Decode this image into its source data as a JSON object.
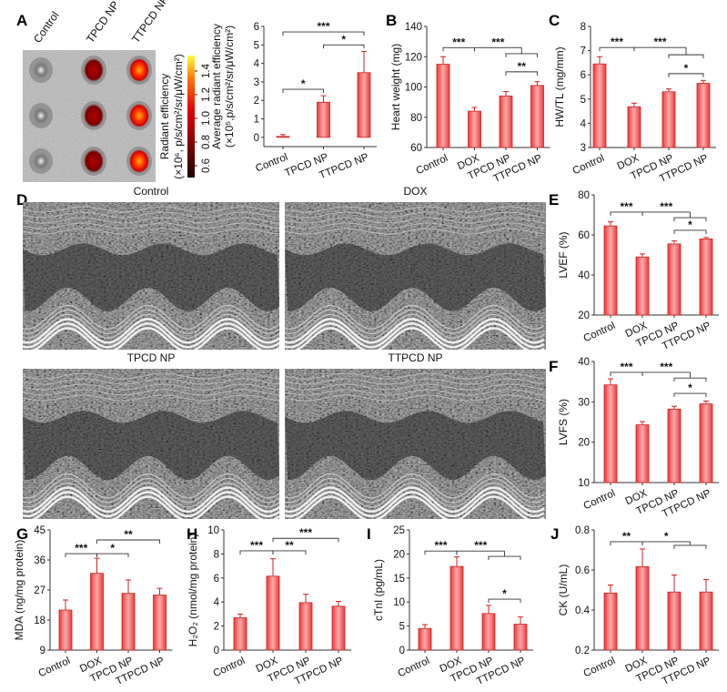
{
  "panel_letters": [
    "A",
    "B",
    "C",
    "D",
    "E",
    "F",
    "G",
    "H",
    "I",
    "J"
  ],
  "panel_a_image": {
    "column_labels": [
      "Control",
      "TPCD NP",
      "TTPCD NP"
    ],
    "colorbar": {
      "label_line1": "Radiant efficiency",
      "label_line2": "(×10⁶, p/s/cm²/sr/μW/cm²)",
      "ticks": [
        "0.6",
        "0.8",
        "1.0",
        "1.2",
        "1.4"
      ],
      "colors": [
        "#1a0000",
        "#8b0000",
        "#e00000",
        "#ff7000",
        "#ffff40"
      ]
    }
  },
  "panel_d": {
    "titles": [
      "Control",
      "DOX",
      "TPCD NP",
      "TTPCD NP"
    ]
  },
  "colors": {
    "bar": "#f05050",
    "bar_light": "#ffb0b0",
    "bar_edge": "#d02020"
  },
  "chart_data": [
    {
      "id": "A",
      "type": "bar",
      "ylabel": [
        "Average radiant efficiency",
        "(×10⁵,p/s/cm²/sr/μW/cm²)"
      ],
      "categories": [
        "Control",
        "TPCD NP",
        "TTPCD NP"
      ],
      "values": [
        0.05,
        1.9,
        3.5
      ],
      "errors": [
        0.1,
        0.35,
        1.15
      ],
      "ylim": [
        -0.5,
        6
      ],
      "yticks": [
        "0",
        "1",
        "2",
        "3",
        "4",
        "5",
        "6"
      ],
      "annotations": [
        {
          "from": 0,
          "to": 1,
          "y": 2.6,
          "label": "*"
        },
        {
          "from": 0,
          "to": 2,
          "y": 5.7,
          "label": "***"
        },
        {
          "from": 1,
          "to": 2,
          "y": 5.0,
          "label": "*"
        }
      ]
    },
    {
      "id": "B",
      "type": "bar",
      "ylabel": [
        "Heart weight (mg)"
      ],
      "categories": [
        "Control",
        "DOX",
        "TPCD NP",
        "TTPCD NP"
      ],
      "values": [
        115,
        84,
        94,
        101
      ],
      "errors": [
        5,
        2.5,
        3,
        2.5
      ],
      "ylim": [
        60,
        140
      ],
      "yticks": [
        "60",
        "80",
        "100",
        "120",
        "140"
      ],
      "annotations": [
        {
          "from": 0,
          "to": 1,
          "y": 126,
          "label": "***"
        },
        {
          "from": 1,
          "to": [
            2,
            3
          ],
          "y": 126,
          "y2": 122,
          "label": "***"
        },
        {
          "from": 2,
          "to": 3,
          "y": 110,
          "label": "**"
        }
      ]
    },
    {
      "id": "C",
      "type": "bar",
      "ylabel": [
        "HW/TL (mg/mm)"
      ],
      "categories": [
        "Control",
        "DOX",
        "TPCD NP",
        "TTPCD NP"
      ],
      "values": [
        6.45,
        4.68,
        5.3,
        5.65
      ],
      "errors": [
        0.3,
        0.15,
        0.12,
        0.12
      ],
      "ylim": [
        3,
        8
      ],
      "yticks": [
        "3",
        "4",
        "5",
        "6",
        "7",
        "8"
      ],
      "annotations": [
        {
          "from": 0,
          "to": 1,
          "y": 7.13,
          "label": "***"
        },
        {
          "from": 1,
          "to": [
            2,
            3
          ],
          "y": 7.13,
          "y2": 6.83,
          "label": "***"
        },
        {
          "from": 2,
          "to": 3,
          "y": 6.05,
          "label": "*"
        }
      ]
    },
    {
      "id": "E",
      "type": "bar",
      "ylabel": [
        "LVEF (%)"
      ],
      "categories": [
        "Control",
        "DOX",
        "TPCD NP",
        "TTPCD NP"
      ],
      "values": [
        64.5,
        49,
        55.5,
        58
      ],
      "errors": [
        2,
        1.5,
        1.5,
        0.7
      ],
      "ylim": [
        20,
        80
      ],
      "yticks": [
        "20",
        "40",
        "60",
        "80"
      ],
      "annotations": [
        {
          "from": 0,
          "to": 1,
          "y": 71.4,
          "label": "***"
        },
        {
          "from": 1,
          "to": [
            2,
            3
          ],
          "y": 71.4,
          "y2": 68.6,
          "label": "***"
        },
        {
          "from": 2,
          "to": 3,
          "y": 62.3,
          "label": "*"
        }
      ]
    },
    {
      "id": "F",
      "type": "bar",
      "ylabel": [
        "LVFS (%)"
      ],
      "categories": [
        "Control",
        "DOX",
        "TPCD NP",
        "TTPCD NP"
      ],
      "values": [
        34.2,
        24.3,
        28.2,
        29.5
      ],
      "errors": [
        1.5,
        0.8,
        0.7,
        0.7
      ],
      "ylim": [
        10,
        40
      ],
      "yticks": [
        "10",
        "20",
        "30",
        "40"
      ],
      "annotations": [
        {
          "from": 0,
          "to": 1,
          "y": 37.3,
          "label": "***"
        },
        {
          "from": 1,
          "to": [
            2,
            3
          ],
          "y": 37.3,
          "y2": 35.9,
          "label": "***"
        },
        {
          "from": 2,
          "to": 3,
          "y": 32.1,
          "label": "*"
        }
      ]
    },
    {
      "id": "G",
      "type": "bar",
      "ylabel": [
        "MDA (ng/mg protein)"
      ],
      "categories": [
        "Control",
        "DOX",
        "TPCD NP",
        "TTPCD NP"
      ],
      "values": [
        21,
        32,
        26,
        25.5
      ],
      "errors": [
        3,
        4.5,
        4,
        2
      ],
      "ylim": [
        9,
        45
      ],
      "yticks": [
        "9",
        "18",
        "27",
        "36",
        "45"
      ],
      "annotations": [
        {
          "from": 0,
          "to": 1,
          "y": 37.9,
          "label": "***"
        },
        {
          "from": 1,
          "to": 2,
          "y": 37.9,
          "label": "*"
        },
        {
          "from": 1,
          "to": 3,
          "y": 42,
          "label": "**"
        }
      ]
    },
    {
      "id": "H",
      "type": "bar",
      "ylabel": [
        "H₂O₂ (nmol/mg protein)"
      ],
      "categories": [
        "Control",
        "DOX",
        "TPCD NP",
        "TTPCD NP"
      ],
      "values": [
        2.7,
        6.15,
        3.95,
        3.65
      ],
      "errors": [
        0.3,
        1.45,
        0.7,
        0.4
      ],
      "ylim": [
        0,
        10
      ],
      "yticks": [
        "0",
        "2",
        "4",
        "6",
        "8",
        "10"
      ],
      "annotations": [
        {
          "from": 0,
          "to": 1,
          "y": 8.26,
          "label": "***"
        },
        {
          "from": 1,
          "to": 2,
          "y": 8.26,
          "label": "**"
        },
        {
          "from": 1,
          "to": 3,
          "y": 9.3,
          "label": "***"
        }
      ]
    },
    {
      "id": "I",
      "type": "bar",
      "ylabel": [
        "cTnI (pg/mL)"
      ],
      "categories": [
        "Control",
        "DOX",
        "TPCD NP",
        "TTPCD NP"
      ],
      "values": [
        4.5,
        17.4,
        7.6,
        5.4
      ],
      "errors": [
        0.8,
        2,
        1.7,
        1.5
      ],
      "ylim": [
        0,
        25
      ],
      "yticks": [
        "0",
        "5",
        "10",
        "15",
        "20",
        "25"
      ],
      "annotations": [
        {
          "from": 0,
          "to": 1,
          "y": 20.6,
          "label": "***"
        },
        {
          "from": 1,
          "to": [
            2,
            3
          ],
          "y": 20.6,
          "y2": 19.5,
          "label": "***"
        },
        {
          "from": 2,
          "to": 3,
          "y": 10.6,
          "label": "*"
        }
      ]
    },
    {
      "id": "J",
      "type": "bar",
      "ylabel": [
        "CK (U/mL)"
      ],
      "categories": [
        "Control",
        "DOX",
        "TPCD NP",
        "TTPCD NP"
      ],
      "values": [
        0.485,
        0.617,
        0.49,
        0.49
      ],
      "errors": [
        0.04,
        0.088,
        0.085,
        0.062
      ],
      "ylim": [
        0.2,
        0.8
      ],
      "yticks": [
        "0.2",
        "0.4",
        "0.6",
        "0.8"
      ],
      "annotations": [
        {
          "from": 0,
          "to": 1,
          "y": 0.741,
          "label": "**"
        },
        {
          "from": 1,
          "to": [
            2,
            3
          ],
          "y": 0.741,
          "y2": 0.723,
          "label": "*"
        }
      ]
    }
  ]
}
